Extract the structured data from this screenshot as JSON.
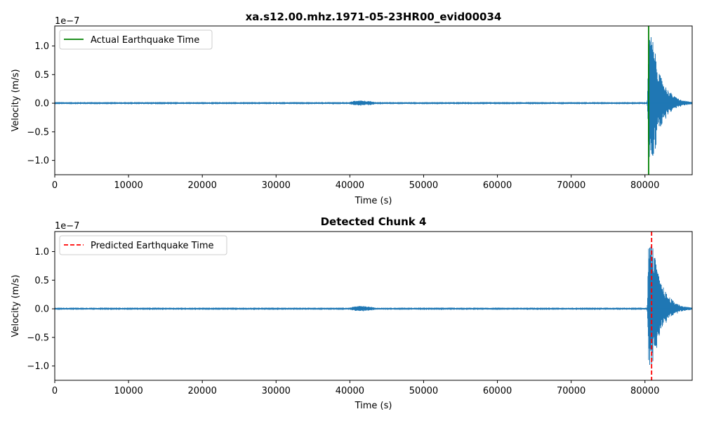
{
  "chart_data": [
    {
      "type": "line",
      "title": "xa.s12.00.mhz.1971-05-23HR00_evid00034",
      "xlabel": "Time (s)",
      "ylabel": "Velocity (m/s)",
      "y_scale_label": "1e−7",
      "xlim": [
        0,
        86400
      ],
      "ylim": [
        -1.25,
        1.35
      ],
      "x_ticks": [
        0,
        10000,
        20000,
        30000,
        40000,
        50000,
        60000,
        70000,
        80000
      ],
      "x_tick_labels": [
        "0",
        "10000",
        "20000",
        "30000",
        "40000",
        "50000",
        "60000",
        "70000",
        "80000"
      ],
      "y_ticks": [
        -1.0,
        -0.5,
        0.0,
        0.5,
        1.0
      ],
      "y_tick_labels": [
        "−1.0",
        "−0.5",
        "0.0",
        "0.5",
        "1.0"
      ],
      "grid": false,
      "legend": {
        "position": "top-left",
        "entries": [
          {
            "label": "Actual Earthquake Time",
            "color": "#008000",
            "style": "solid"
          }
        ]
      },
      "series": [
        {
          "color": "#1f77b4",
          "envelope_x": [
            0,
            10000,
            20000,
            30000,
            40000,
            40500,
            41500,
            42500,
            43500,
            50000,
            60000,
            70000,
            80000,
            80300,
            80500,
            80700,
            81000,
            81500,
            82000,
            83000,
            84000,
            85000,
            86400
          ],
          "envelope_amplitude": [
            0.02,
            0.02,
            0.02,
            0.02,
            0.02,
            0.04,
            0.05,
            0.04,
            0.02,
            0.02,
            0.02,
            0.02,
            0.02,
            0.02,
            1.1,
            1.22,
            1.15,
            0.8,
            0.5,
            0.25,
            0.12,
            0.05,
            0.02
          ]
        }
      ],
      "vlines": [
        {
          "x": 80500,
          "color": "#008000",
          "style": "solid",
          "label": "Actual Earthquake Time"
        }
      ]
    },
    {
      "type": "line",
      "title": "Detected Chunk 4",
      "xlabel": "Time (s)",
      "ylabel": "Velocity (m/s)",
      "y_scale_label": "1e−7",
      "xlim": [
        0,
        86400
      ],
      "ylim": [
        -1.25,
        1.35
      ],
      "x_ticks": [
        0,
        10000,
        20000,
        30000,
        40000,
        50000,
        60000,
        70000,
        80000
      ],
      "x_tick_labels": [
        "0",
        "10000",
        "20000",
        "30000",
        "40000",
        "50000",
        "60000",
        "70000",
        "80000"
      ],
      "y_ticks": [
        -1.0,
        -0.5,
        0.0,
        0.5,
        1.0
      ],
      "y_tick_labels": [
        "−1.0",
        "−0.5",
        "0.0",
        "0.5",
        "1.0"
      ],
      "grid": false,
      "legend": {
        "position": "top-left",
        "entries": [
          {
            "label": "Predicted Earthquake Time",
            "color": "#ff0000",
            "style": "dashed"
          }
        ]
      },
      "series": [
        {
          "color": "#1f77b4",
          "envelope_x": [
            0,
            10000,
            20000,
            30000,
            40000,
            40500,
            41500,
            42500,
            43500,
            50000,
            60000,
            70000,
            80000,
            80300,
            80500,
            80700,
            81000,
            81500,
            82000,
            83000,
            84000,
            85000,
            86400
          ],
          "envelope_amplitude": [
            0.02,
            0.02,
            0.02,
            0.02,
            0.02,
            0.04,
            0.05,
            0.04,
            0.02,
            0.02,
            0.02,
            0.02,
            0.02,
            0.02,
            1.1,
            1.22,
            1.15,
            0.8,
            0.5,
            0.25,
            0.12,
            0.05,
            0.02
          ]
        }
      ],
      "vlines": [
        {
          "x": 80900,
          "color": "#ff0000",
          "style": "dashed",
          "label": "Predicted Earthquake Time"
        }
      ]
    }
  ]
}
